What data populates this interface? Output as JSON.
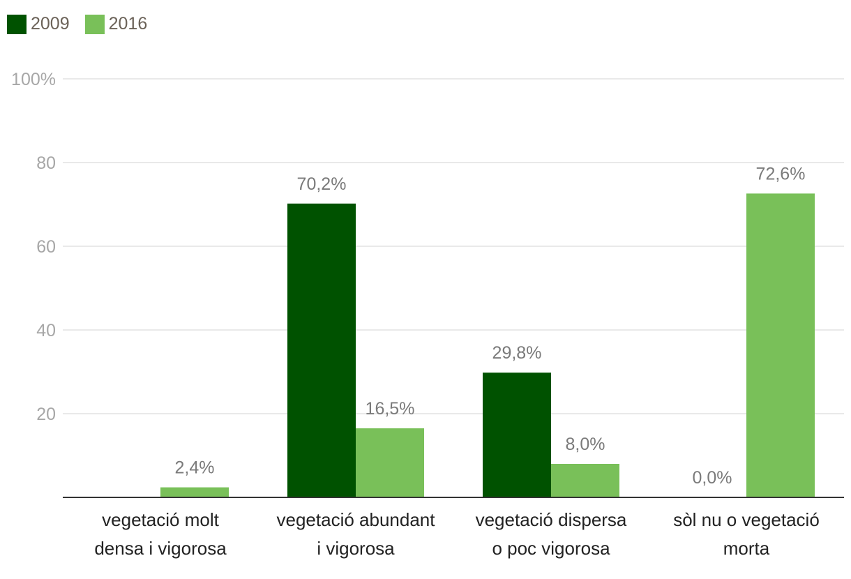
{
  "chart_data": {
    "type": "bar",
    "title": "",
    "xlabel": "",
    "ylabel": "",
    "ylim": [
      0,
      100
    ],
    "yticks": [
      20,
      40,
      60,
      80,
      100
    ],
    "ytick_labels": [
      "20",
      "40",
      "60",
      "80",
      "100%"
    ],
    "categories": [
      [
        "vegetació molt",
        "densa i vigorosa"
      ],
      [
        "vegetació abundant",
        "i vigorosa"
      ],
      [
        "vegetació dispersa",
        "o poc vigorosa"
      ],
      [
        "sòl nu o vegetació",
        "morta"
      ]
    ],
    "series": [
      {
        "name": "2009",
        "color": "#005200",
        "values": [
          null,
          70.2,
          29.8,
          0.0
        ],
        "labels": [
          null,
          "70,2%",
          "29,8%",
          "0,0%"
        ]
      },
      {
        "name": "2016",
        "color": "#79c059",
        "values": [
          2.4,
          16.5,
          8.0,
          72.6
        ],
        "labels": [
          "2,4%",
          "16,5%",
          "8,0%",
          "72,6%"
        ]
      }
    ],
    "legend_position": "top-left",
    "grid": true
  }
}
